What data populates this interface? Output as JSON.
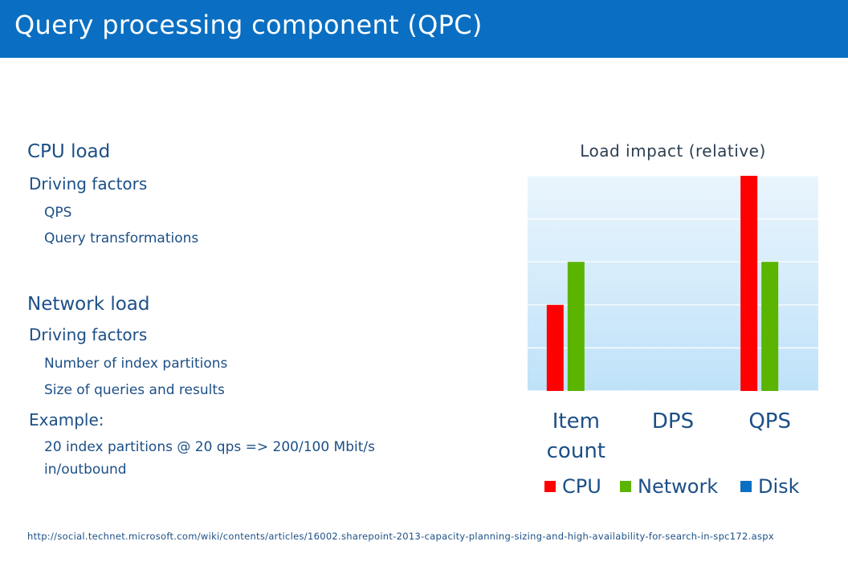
{
  "header": {
    "title": "Query processing component (QPC)"
  },
  "content": {
    "blocks": [
      {
        "level": 1,
        "text": "CPU load"
      },
      {
        "level": 2,
        "text": "Driving factors"
      },
      {
        "level": 3,
        "text": "QPS"
      },
      {
        "level": 3,
        "text": "Query transformations"
      },
      {
        "level": 1,
        "text": "Network load"
      },
      {
        "level": 2,
        "text": "Driving factors"
      },
      {
        "level": 3,
        "text": "Number of index partitions"
      },
      {
        "level": 3,
        "text": "Size of queries and results"
      },
      {
        "level": 2,
        "text": "Example:"
      },
      {
        "level": 3,
        "text": "20 index partitions @ 20 qps => 200/100 Mbit/s"
      },
      {
        "level": 3,
        "text": "in/outbound"
      }
    ]
  },
  "footer": {
    "url": "http://social.technet.microsoft.com/wiki/contents/articles/16002.sharepoint-2013-capacity-planning-sizing-and-high-availability-for-search-in-spc172.aspx"
  },
  "chart_data": {
    "type": "bar",
    "title": "Load impact (relative)",
    "categories": [
      "Item count",
      "DPS",
      "QPS"
    ],
    "series": [
      {
        "name": "CPU",
        "color": "#ff0000",
        "values": [
          2,
          0,
          5
        ]
      },
      {
        "name": "Network",
        "color": "#5ab400",
        "values": [
          3,
          0,
          3
        ]
      },
      {
        "name": "Disk",
        "color": "#0a6fc2",
        "values": [
          0,
          0,
          0
        ]
      }
    ],
    "ylim": [
      0,
      5
    ],
    "grid": true,
    "legend_position": "bottom"
  }
}
